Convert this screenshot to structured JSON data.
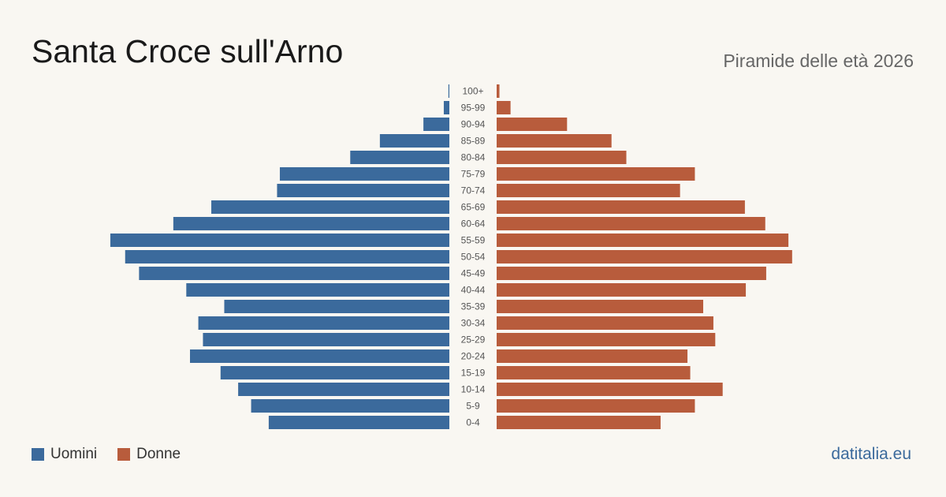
{
  "header": {
    "title": "Santa Croce sull'Arno",
    "subtitle": "Piramide delle età 2026"
  },
  "legend": {
    "men_label": "Uomini",
    "women_label": "Donne"
  },
  "brand": "datitalia.eu",
  "colors": {
    "men": "#3b6a9c",
    "women": "#b85c3c",
    "background": "#f9f7f2"
  },
  "chart_data": {
    "type": "bar",
    "orientation": "horizontal-pyramid",
    "categories": [
      "100+",
      "95-99",
      "90-94",
      "85-89",
      "80-84",
      "75-79",
      "70-74",
      "65-69",
      "60-64",
      "55-59",
      "50-54",
      "45-49",
      "40-44",
      "35-39",
      "30-34",
      "25-29",
      "20-24",
      "15-19",
      "10-14",
      "5-9",
      "0-4"
    ],
    "series": [
      {
        "name": "Uomini",
        "values": [
          1,
          6,
          28,
          75,
          107,
          183,
          186,
          257,
          298,
          366,
          350,
          335,
          284,
          243,
          271,
          266,
          280,
          247,
          228,
          214,
          195
        ]
      },
      {
        "name": "Donne",
        "values": [
          3,
          15,
          76,
          124,
          140,
          214,
          198,
          268,
          290,
          315,
          319,
          291,
          269,
          223,
          234,
          236,
          206,
          209,
          244,
          214,
          177
        ]
      }
    ],
    "title": "Santa Croce sull'Arno",
    "subtitle": "Piramide delle età 2026",
    "xlabel": "",
    "ylabel": "",
    "grid": false,
    "legend_position": "bottom-left"
  }
}
